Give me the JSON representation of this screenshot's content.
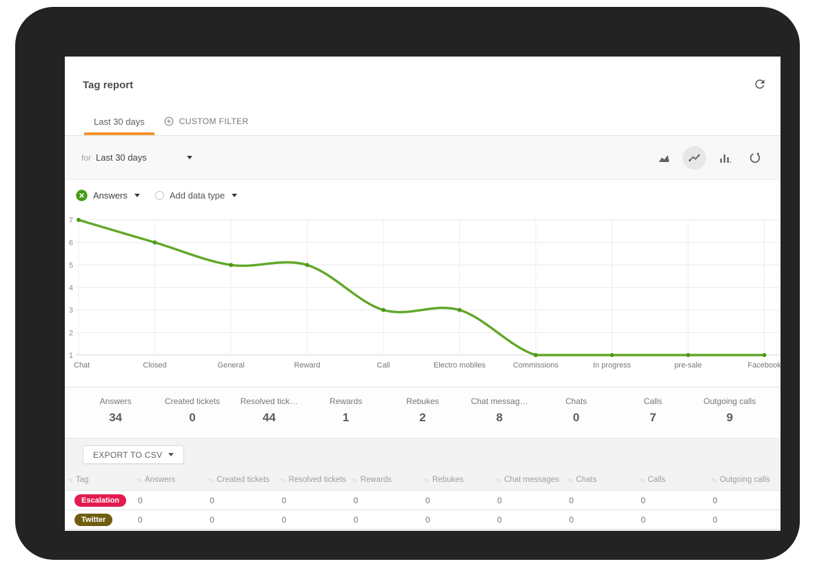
{
  "header": {
    "title": "Tag report",
    "refresh_icon": "refresh-icon"
  },
  "tabs": [
    {
      "label": "Last 30 days",
      "active": true
    },
    {
      "label": "CUSTOM FILTER",
      "active": false,
      "icon": "circle-plus-icon"
    }
  ],
  "filter": {
    "prefix": "for",
    "value": "Last 30 days"
  },
  "chart_toolbar": {
    "buttons": [
      {
        "name": "area-chart",
        "selected": false
      },
      {
        "name": "line-chart",
        "selected": true
      },
      {
        "name": "bar-chart",
        "selected": false
      },
      {
        "name": "auto-refresh",
        "selected": false
      }
    ]
  },
  "datatype": {
    "selected": "Answers",
    "add_label": "Add data type"
  },
  "chart_data": {
    "type": "line",
    "categories": [
      "Chat",
      "Closed",
      "General",
      "Reward",
      "Call",
      "Electro mobiles",
      "Commissions",
      "In progress",
      "pre-sale",
      "Facebook"
    ],
    "series": [
      {
        "name": "Answers",
        "values": [
          7,
          6,
          5,
          5,
          3,
          3,
          1,
          1,
          1,
          1
        ]
      }
    ],
    "ylim": [
      1,
      7
    ],
    "yticks": [
      1,
      2,
      3,
      4,
      5,
      6,
      7
    ],
    "grid": true,
    "legend": "none",
    "line_color": "#61a729",
    "point_color": "#4e9a18",
    "smooth": true
  },
  "stats": [
    {
      "label": "Answers",
      "value": "34"
    },
    {
      "label": "Created tickets",
      "value": "0"
    },
    {
      "label": "Resolved tick…",
      "value": "44"
    },
    {
      "label": "Rewards",
      "value": "1"
    },
    {
      "label": "Rebukes",
      "value": "2"
    },
    {
      "label": "Chat messag…",
      "value": "8"
    },
    {
      "label": "Chats",
      "value": "0"
    },
    {
      "label": "Calls",
      "value": "7"
    },
    {
      "label": "Outgoing calls",
      "value": "9"
    }
  ],
  "export_button": {
    "label": "EXPORT TO CSV"
  },
  "table": {
    "columns": [
      "Tag",
      "Answers",
      "Created tickets",
      "Resolved tickets",
      "Rewards",
      "Rebukes",
      "Chat messages",
      "Chats",
      "Calls",
      "Outgoing calls"
    ],
    "rows": [
      {
        "tag": "Escalation",
        "tag_color": "#e4194d",
        "values": [
          "0",
          "0",
          "0",
          "0",
          "0",
          "0",
          "0",
          "0",
          "0"
        ]
      },
      {
        "tag": "Twitter",
        "tag_color": "#6f5d10",
        "values": [
          "0",
          "0",
          "0",
          "0",
          "0",
          "0",
          "0",
          "0",
          "0"
        ]
      }
    ]
  },
  "colors": {
    "accent_orange": "#f2952e",
    "line_green": "#61a729",
    "chip_green": "#469c16",
    "frame_dark": "#232323",
    "grid_line": "#e9e9e9",
    "axis_line": "#d4d4d4"
  }
}
